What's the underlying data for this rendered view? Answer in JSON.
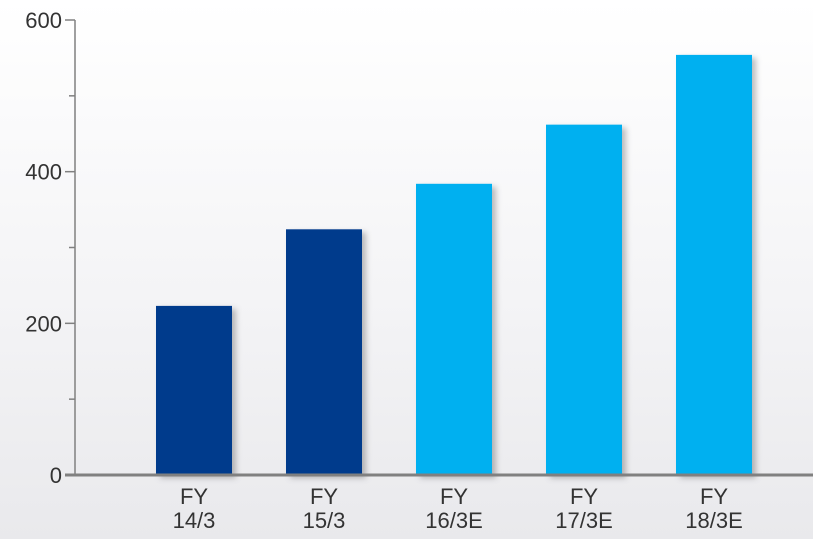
{
  "chart_data": {
    "type": "bar",
    "title": "",
    "xlabel": "",
    "ylabel": "",
    "categories": [
      [
        "FY",
        "14/3"
      ],
      [
        "FY",
        "15/3"
      ],
      [
        "FY",
        "16/3E"
      ],
      [
        "FY",
        "17/3E"
      ],
      [
        "FY",
        "18/3E"
      ]
    ],
    "values": [
      223,
      324,
      384,
      462,
      554
    ],
    "bar_colors": [
      "#003a8c",
      "#003a8c",
      "#00b0f0",
      "#00b0f0",
      "#00b0f0"
    ],
    "ylim": [
      0,
      600
    ],
    "yticks": [
      0,
      200,
      400,
      600
    ],
    "minor_yticks": [
      100,
      300,
      500
    ],
    "grid": false,
    "legend": "none",
    "axis_color": "#808080"
  }
}
